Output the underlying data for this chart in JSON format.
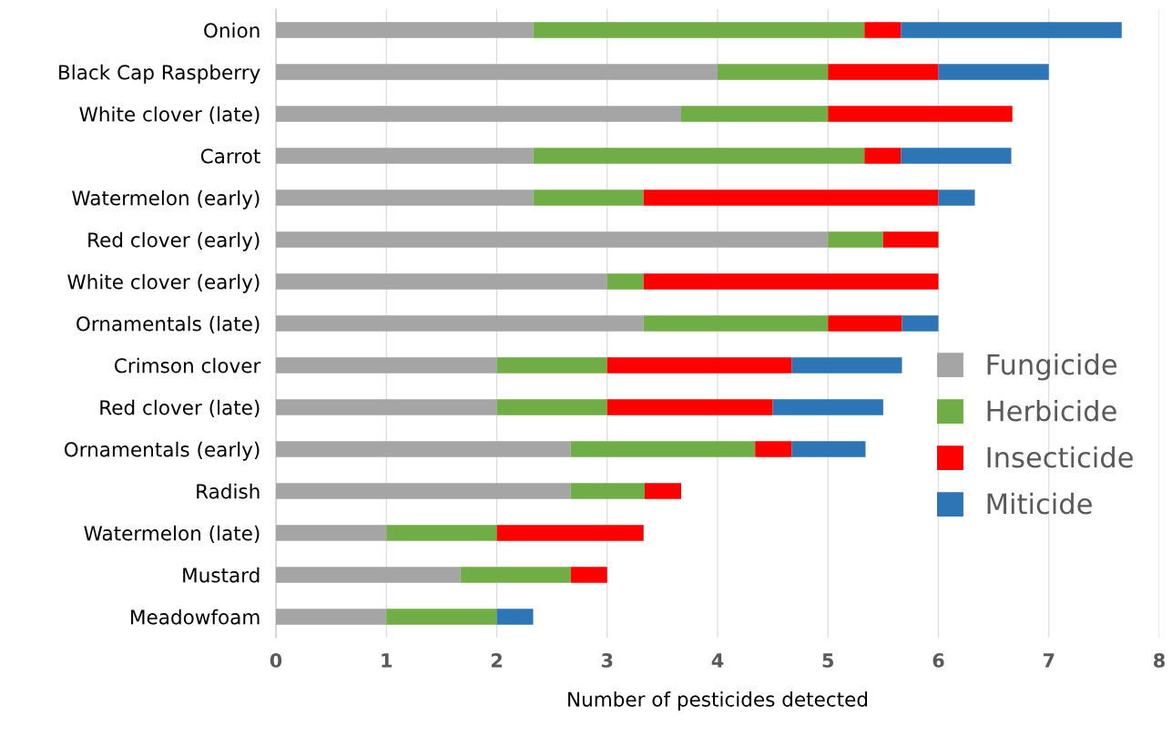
{
  "chart_data": {
    "type": "bar",
    "orientation": "horizontal",
    "stacked": true,
    "xlabel": "Number of pesticides detected",
    "categories": [
      "Onion",
      "Black Cap Raspberry",
      "White clover (late)",
      "Carrot",
      "Watermelon (early)",
      "Red clover (early)",
      "White clover (early)",
      "Ornamentals (late)",
      "Crimson clover",
      "Red clover (late)",
      "Ornamentals (early)",
      "Radish",
      "Watermelon (late)",
      "Mustard",
      "Meadowfoam"
    ],
    "series": [
      {
        "name": "Fungicide",
        "color": "#a5a5a5",
        "values": [
          2.33,
          4,
          3.67,
          2.33,
          2.33,
          5,
          3,
          3.33,
          2,
          2,
          2.67,
          2.67,
          1,
          1.67,
          1
        ]
      },
      {
        "name": "Herbicide",
        "color": "#70ad47",
        "values": [
          3,
          1,
          1.33,
          3,
          1,
          0.5,
          0.33,
          1.67,
          1,
          1,
          1.67,
          0.67,
          1,
          1,
          1
        ]
      },
      {
        "name": "Insecticide",
        "color": "#ff0000",
        "values": [
          0.33,
          1,
          1.67,
          0.33,
          2.67,
          0.5,
          2.67,
          0.67,
          1.67,
          1.5,
          0.33,
          0.33,
          1.33,
          0.33,
          null
        ]
      },
      {
        "name": "Miticide",
        "color": "#2e75b6",
        "values": [
          2,
          1,
          null,
          1,
          0.33,
          null,
          null,
          0.33,
          1,
          1,
          0.67,
          null,
          null,
          null,
          0.33
        ]
      }
    ],
    "xlim": [
      0,
      8
    ],
    "xticks": [
      0,
      1,
      2,
      3,
      4,
      5,
      6,
      7,
      8
    ],
    "grid": "x",
    "legend": "right"
  }
}
